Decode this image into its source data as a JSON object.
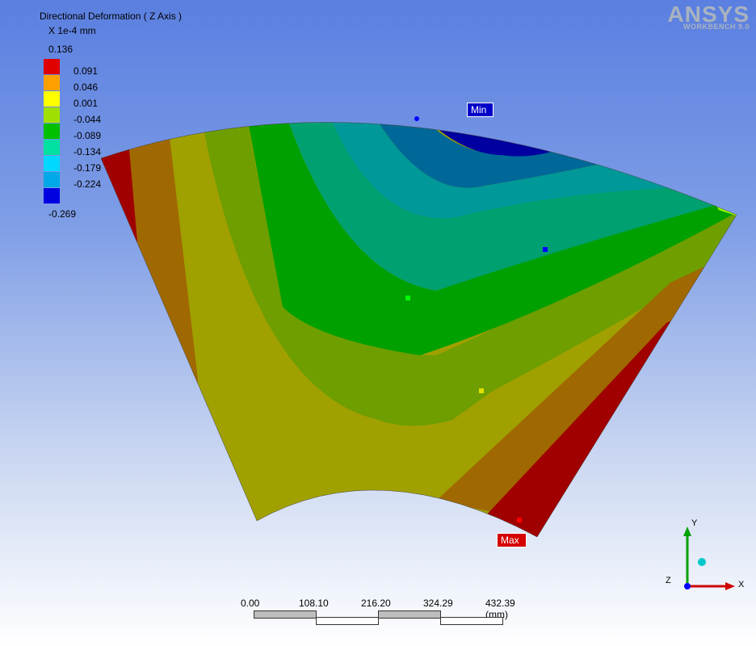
{
  "result": {
    "title": "Directional Deformation ( Z Axis )",
    "unit": "X 1e-4 mm",
    "max_label": "0.136",
    "min_label": "-0.269",
    "legend_values": [
      "0.091",
      "0.046",
      "0.001",
      "-0.044",
      "-0.089",
      "-0.134",
      "-0.179",
      "-0.224"
    ],
    "legend_colors": [
      "#e00000",
      "#ffa000",
      "#ffff00",
      "#a0e000",
      "#00c000",
      "#00e0a0",
      "#00d8ff",
      "#00a8e8",
      "#0000e0"
    ]
  },
  "branding": {
    "name": "ANSYS",
    "subtitle": "WORKBENCH 9.0"
  },
  "probes": {
    "min_tag": "Min",
    "max_tag": "Max"
  },
  "scale_bar": {
    "ticks": [
      "0.00",
      "108.10",
      "216.20",
      "324.29",
      "432.39 (mm)"
    ]
  },
  "triad": {
    "x": "X",
    "y": "Y",
    "z": "Z"
  },
  "contour_colors": {
    "red": "#a00000",
    "orange": "#a06800",
    "olive": "#a0a000",
    "olivegreen": "#6e9e00",
    "green": "#00a000",
    "teal": "#00a070",
    "cyan": "#009898",
    "blueteal": "#006898",
    "blue": "#0000a0",
    "lightcyan": "#00c8e8",
    "lime": "#a0ff00"
  }
}
